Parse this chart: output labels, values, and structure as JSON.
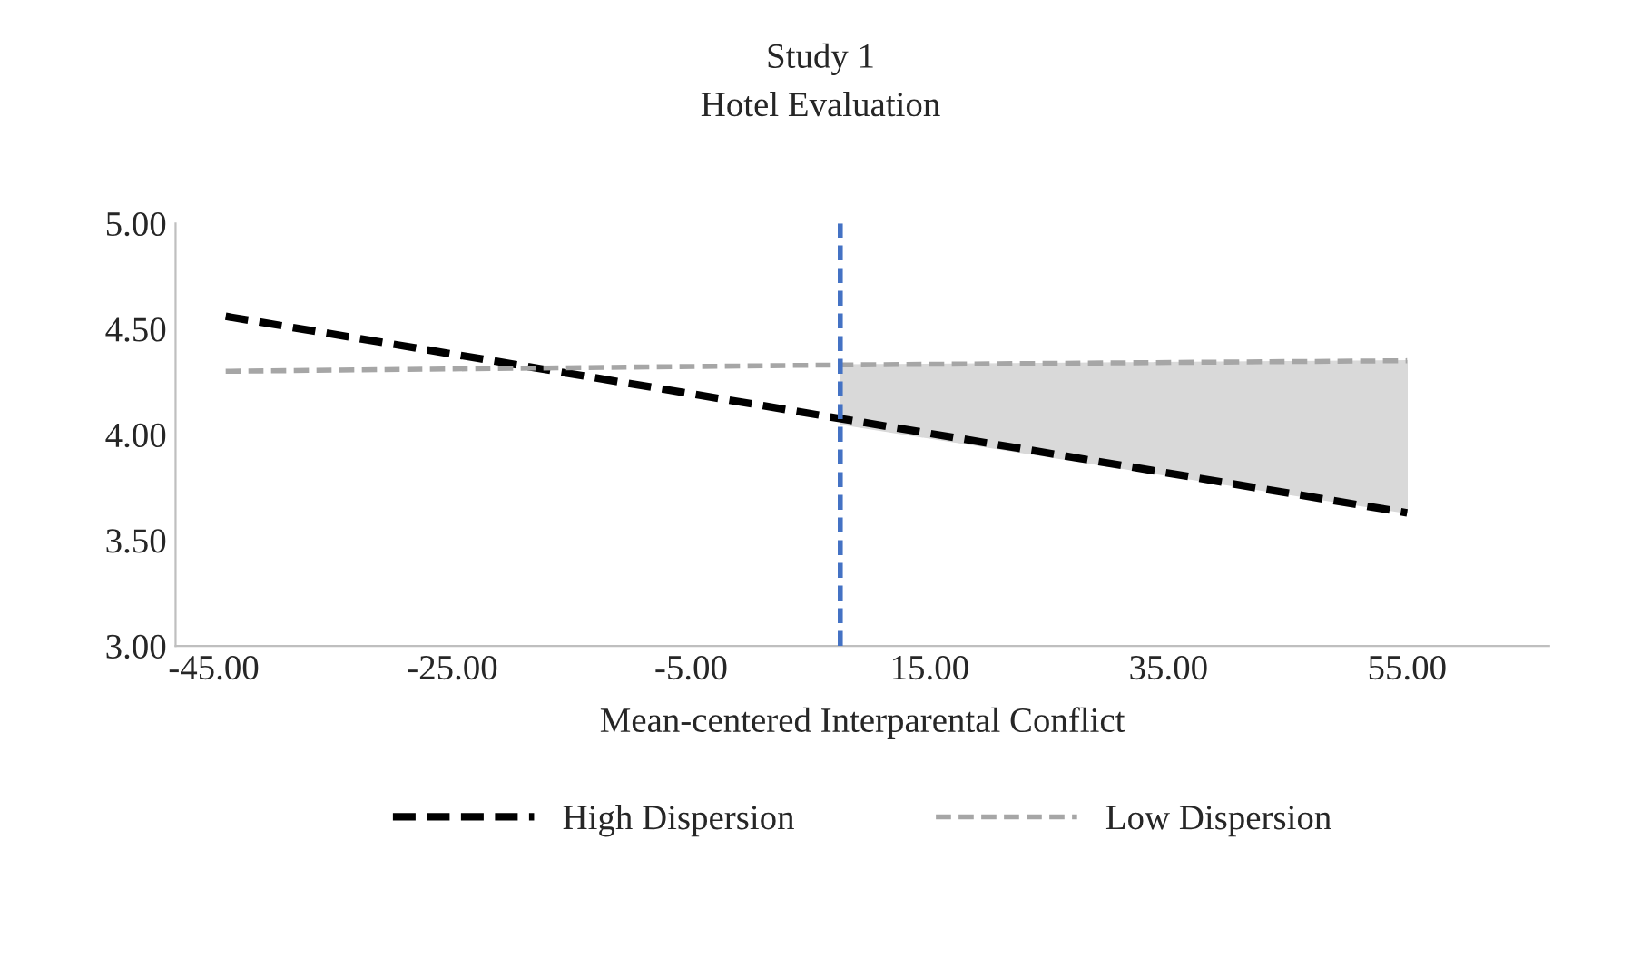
{
  "chart_data": {
    "type": "line",
    "title": "Study 1",
    "subtitle": "Hotel Evaluation",
    "xlabel": "Mean-centered Interparental Conflict",
    "xlim": [
      -48.2,
      66.9
    ],
    "xticks": [
      {
        "value": -45,
        "label": "-45.00"
      },
      {
        "value": -25,
        "label": "-25.00"
      },
      {
        "value": -5,
        "label": "-5.00"
      },
      {
        "value": 15,
        "label": "15.00"
      },
      {
        "value": 35,
        "label": "35.00"
      },
      {
        "value": 55,
        "label": "55.00"
      }
    ],
    "ylim": [
      3,
      5
    ],
    "yticks": [
      {
        "value": 3,
        "label": "3.00"
      },
      {
        "value": 3.5,
        "label": "3.50"
      },
      {
        "value": 4,
        "label": "4.00"
      },
      {
        "value": 4.5,
        "label": "4.50"
      },
      {
        "value": 5,
        "label": "5.00"
      }
    ],
    "series": [
      {
        "name": "High Dispersion",
        "color": "#000000",
        "x": [
          -44,
          55
        ],
        "values": [
          4.56,
          3.63
        ],
        "line_style": "dashed"
      },
      {
        "name": "Low Dispersion",
        "color": "#a6a6a6",
        "x": [
          -44,
          7.5,
          55
        ],
        "values": [
          4.3,
          4.33,
          4.35
        ],
        "lower": [
          null,
          4.05,
          3.63
        ],
        "upper": [
          null,
          4.33,
          4.35
        ],
        "line_style": "dashed"
      }
    ],
    "ref_lines": [
      {
        "axis": "x",
        "value": 7.5,
        "color": "#4472c4",
        "line_style": "dashed"
      }
    ],
    "grid": false,
    "legend": "bottom",
    "marker": "none"
  }
}
